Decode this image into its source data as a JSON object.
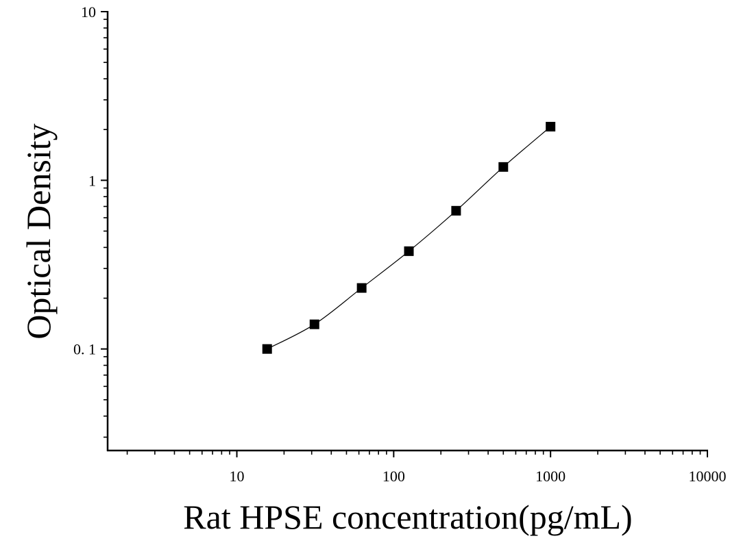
{
  "chart_data": {
    "type": "scatter",
    "title": "",
    "xlabel": "Rat HPSE concentration(pg/mL)",
    "ylabel": "Optical Density",
    "x_scale": "log",
    "y_scale": "log",
    "xlim": [
      1.5,
      10000
    ],
    "ylim": [
      0.025,
      10
    ],
    "x_ticks": [
      {
        "value": 10,
        "label": "10"
      },
      {
        "value": 100,
        "label": "100"
      },
      {
        "value": 1000,
        "label": "1000"
      },
      {
        "value": 10000,
        "label": "10000"
      }
    ],
    "y_ticks": [
      {
        "value": 0.1,
        "label": "0. 1"
      },
      {
        "value": 1,
        "label": "1"
      },
      {
        "value": 10,
        "label": "10"
      }
    ],
    "grid": false,
    "legend": "none",
    "series": [
      {
        "marker": "square",
        "color": "#000000",
        "fit_line": true,
        "points": [
          {
            "x": 15.6,
            "y": 0.1
          },
          {
            "x": 31.25,
            "y": 0.14
          },
          {
            "x": 62.5,
            "y": 0.23
          },
          {
            "x": 125,
            "y": 0.38
          },
          {
            "x": 250,
            "y": 0.66
          },
          {
            "x": 500,
            "y": 1.2
          },
          {
            "x": 1000,
            "y": 2.08
          }
        ]
      }
    ]
  }
}
